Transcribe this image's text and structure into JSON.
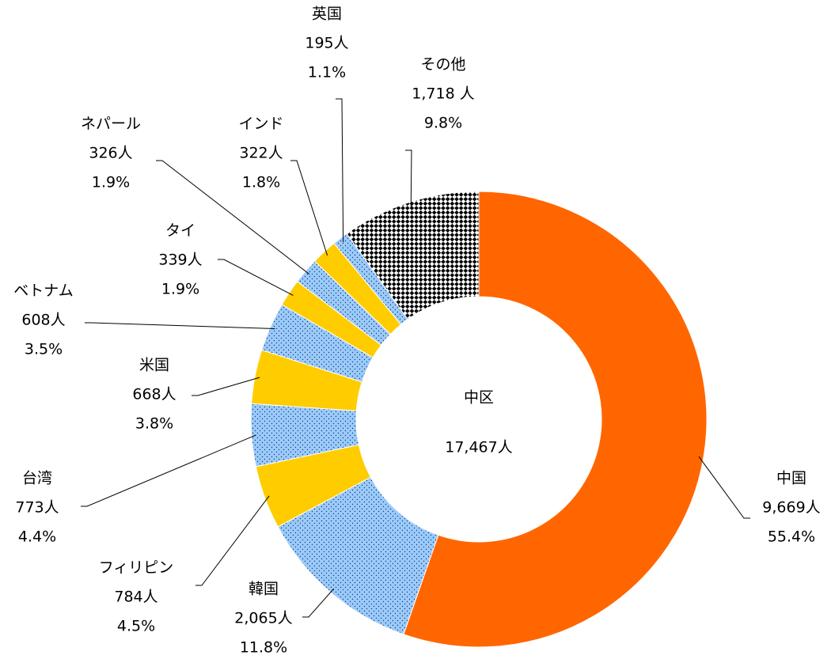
{
  "chart_data": {
    "type": "donut",
    "center_title": "中区",
    "center_text": "17,467人",
    "categories": [
      "中国",
      "韓国",
      "フィリピン",
      "台湾",
      "米国",
      "ベトナム",
      "タイ",
      "ネパール",
      "インド",
      "英国",
      "その他"
    ],
    "values": [
      9669,
      2065,
      784,
      773,
      668,
      608,
      339,
      326,
      322,
      195,
      1718
    ],
    "value_labels": [
      "9,669人",
      "2,065人",
      "784人",
      "773人",
      "668人",
      "608人",
      "339人",
      "326人",
      "322人",
      "195人",
      "1,718 人"
    ],
    "shares": [
      55.4,
      11.8,
      4.5,
      4.4,
      3.8,
      3.5,
      1.9,
      1.9,
      1.8,
      1.1,
      9.8
    ],
    "share_labels": [
      "55.4%",
      "11.8%",
      "4.5%",
      "4.4%",
      "3.8%",
      "3.5%",
      "1.9%",
      "1.9%",
      "1.8%",
      "1.1%",
      "9.8%"
    ],
    "colors": [
      "#ff6600",
      "#99ccff",
      "#ffcc00",
      "#99ccff",
      "#ffcc00",
      "#99ccff",
      "#ffcc00",
      "#99ccff",
      "#ffcc00",
      "#99ccff",
      "#ffffff"
    ],
    "patterns": [
      "solid",
      "dots",
      "solid",
      "dots",
      "solid",
      "dots",
      "solid",
      "dots",
      "solid",
      "dots",
      "checker"
    ]
  }
}
